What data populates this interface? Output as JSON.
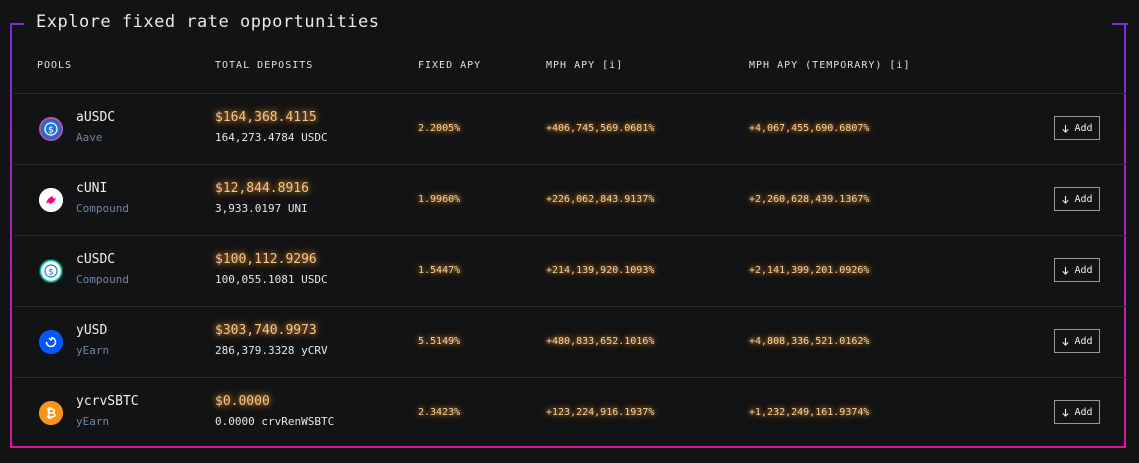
{
  "section": {
    "title": "Explore fixed rate opportunities"
  },
  "table": {
    "headers": {
      "pools": "POOLS",
      "total_deposits": "TOTAL DEPOSITS",
      "fixed_apy": "FIXED APY",
      "mph_apy": "MPH APY [i]",
      "mph_apy_temp": "MPH APY (TEMPORARY) [i]"
    },
    "rows": [
      {
        "name": "aUSDC",
        "protocol": "Aave",
        "deposit_usd": "$164,368.4115",
        "deposit_token": "164,273.4784 USDC",
        "fixed_apy": "2.2005%",
        "mph_apy": "+406,745,569.0681%",
        "mph_apy_temp": "+4,067,455,690.6807%",
        "add_label": "Add",
        "icon": "ausdc-icon"
      },
      {
        "name": "cUNI",
        "protocol": "Compound",
        "deposit_usd": "$12,844.8916",
        "deposit_token": "3,933.0197 UNI",
        "fixed_apy": "1.9960%",
        "mph_apy": "+226,062,843.9137%",
        "mph_apy_temp": "+2,260,628,439.1367%",
        "add_label": "Add",
        "icon": "uni-icon"
      },
      {
        "name": "cUSDC",
        "protocol": "Compound",
        "deposit_usd": "$100,112.9296",
        "deposit_token": "100,055.1081 USDC",
        "fixed_apy": "1.5447%",
        "mph_apy": "+214,139,920.1093%",
        "mph_apy_temp": "+2,141,399,201.0926%",
        "add_label": "Add",
        "icon": "cusdc-icon"
      },
      {
        "name": "yUSD",
        "protocol": "yEarn",
        "deposit_usd": "$303,740.9973",
        "deposit_token": "286,379.3328 yCRV",
        "fixed_apy": "5.5149%",
        "mph_apy": "+480,833,652.1016%",
        "mph_apy_temp": "+4,808,336,521.0162%",
        "add_label": "Add",
        "icon": "yearn-icon"
      },
      {
        "name": "ycrvSBTC",
        "protocol": "yEarn",
        "deposit_usd": "$0.0000",
        "deposit_token": "0.0000 crvRenWSBTC",
        "fixed_apy": "2.3423%",
        "mph_apy": "+123,224,916.1937%",
        "mph_apy_temp": "+1,232,249,161.9374%",
        "add_label": "Add",
        "icon": "bitcoin-icon"
      }
    ]
  },
  "colors": {
    "frame_gradient_top": "#7a2cd8",
    "frame_gradient_bottom": "#e0129a",
    "glow_text": "#f8d29a",
    "protocol_text": "#6f84a6"
  }
}
